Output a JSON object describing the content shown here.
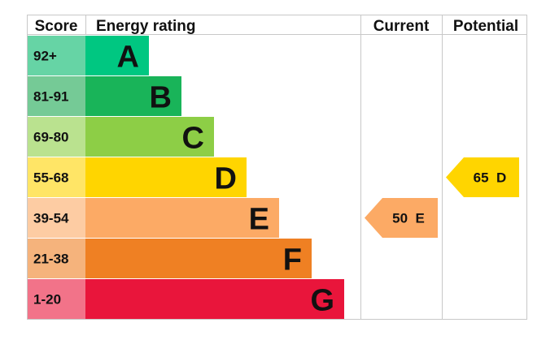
{
  "chart_data": {
    "type": "bar",
    "headers": {
      "score": "Score",
      "rating": "Energy rating",
      "current": "Current",
      "potential": "Potential"
    },
    "bands": [
      {
        "score": "92+",
        "letter": "A",
        "color": "#00c781",
        "score_color": "#66d4a5"
      },
      {
        "score": "81-91",
        "letter": "B",
        "color": "#19b459",
        "score_color": "#75ca96"
      },
      {
        "score": "69-80",
        "letter": "C",
        "color": "#8dce46",
        "score_color": "#bae28f"
      },
      {
        "score": "55-68",
        "letter": "D",
        "color": "#ffd500",
        "score_color": "#ffe566"
      },
      {
        "score": "39-54",
        "letter": "E",
        "color": "#fcaa65",
        "score_color": "#fdcca3"
      },
      {
        "score": "21-38",
        "letter": "F",
        "color": "#ef8023",
        "score_color": "#f5b37c"
      },
      {
        "score": "1-20",
        "letter": "G",
        "color": "#e9153b",
        "score_color": "#f27389"
      }
    ],
    "current": {
      "value": 50,
      "band": "E",
      "label": "50 E",
      "color": "#fcaa65"
    },
    "potential": {
      "value": 65,
      "band": "D",
      "label": "65 D",
      "color": "#ffd500"
    }
  }
}
